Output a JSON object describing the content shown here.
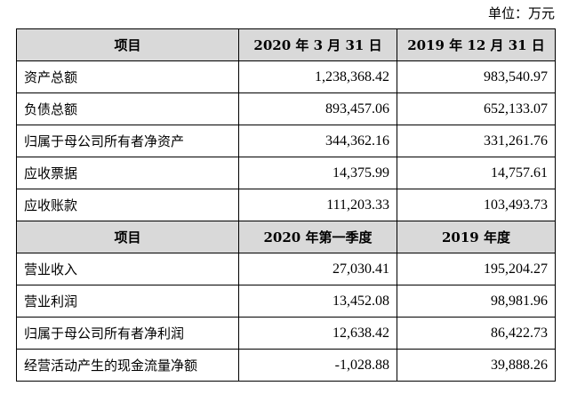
{
  "unit_label": "单位：万元",
  "section1": {
    "headers": [
      "项目",
      "2020 年 3 月 31 日",
      "2019 年 12 月 31 日"
    ],
    "rows": [
      {
        "label": "资产总额",
        "v1": "1,238,368.42",
        "v2": "983,540.97"
      },
      {
        "label": "负债总额",
        "v1": "893,457.06",
        "v2": "652,133.07"
      },
      {
        "label": "归属于母公司所有者净资产",
        "v1": "344,362.16",
        "v2": "331,261.76"
      },
      {
        "label": "应收票据",
        "v1": "14,375.99",
        "v2": "14,757.61"
      },
      {
        "label": "应收账款",
        "v1": "111,203.33",
        "v2": "103,493.73"
      }
    ]
  },
  "section2": {
    "headers": [
      "项目",
      "2020 年第一季度",
      "2019 年度"
    ],
    "rows": [
      {
        "label": "营业收入",
        "v1": "27,030.41",
        "v2": "195,204.27"
      },
      {
        "label": "营业利润",
        "v1": "13,452.08",
        "v2": "98,981.96"
      },
      {
        "label": "归属于母公司所有者净利润",
        "v1": "12,638.42",
        "v2": "86,422.73"
      },
      {
        "label": "经营活动产生的现金流量净额",
        "v1": "-1,028.88",
        "v2": "39,888.26"
      }
    ]
  }
}
